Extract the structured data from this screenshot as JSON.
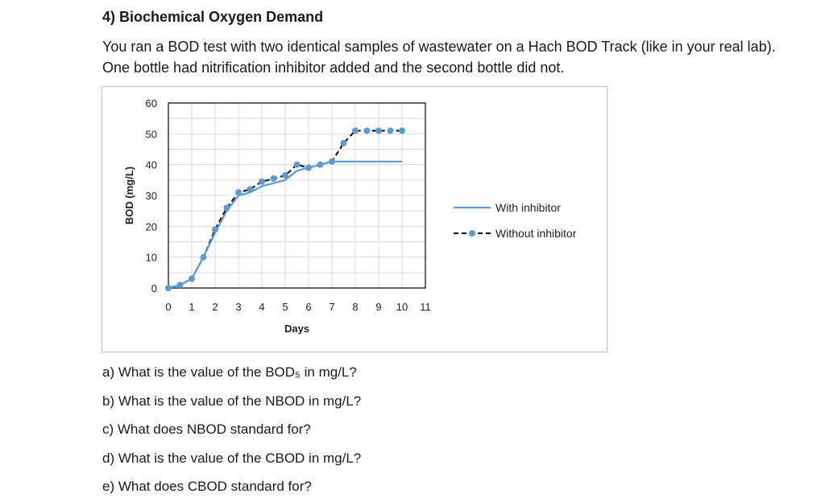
{
  "heading": "4) Biochemical Oxygen Demand",
  "intro": "You ran a BOD test with two identical samples of wastewater on a Hach BOD Track (like in your real lab). One bottle had nitrification inhibitor added and the second bottle did not.",
  "chart_data": {
    "type": "line",
    "xlabel": "Days",
    "ylabel": "BOD (mg/L)",
    "xlim": [
      0,
      11
    ],
    "ylim": [
      0,
      60
    ],
    "xticks": [
      0,
      1,
      2,
      3,
      4,
      5,
      6,
      7,
      8,
      9,
      10,
      11
    ],
    "yticks": [
      0,
      10,
      20,
      30,
      40,
      50,
      60
    ],
    "grid": true,
    "legend_position": "right",
    "series": [
      {
        "name": "With inhibitor",
        "style": "solid",
        "color": "#5b9bd5",
        "x": [
          0,
          0.5,
          1,
          1.5,
          2,
          2.5,
          3,
          3.5,
          4,
          4.5,
          5,
          5.5,
          6,
          6.5,
          7,
          7.5,
          8,
          9,
          10
        ],
        "y": [
          0,
          1,
          3,
          10,
          18,
          25,
          30,
          31,
          33,
          34,
          35,
          38,
          39,
          40,
          41,
          41,
          41,
          41,
          41
        ]
      },
      {
        "name": "Without inhibitor",
        "style": "dashed-markers",
        "color": "#5b9bd5",
        "line_color": "#000000",
        "x": [
          0,
          0.5,
          1,
          1.5,
          2,
          2.5,
          3,
          3.5,
          4,
          4.5,
          5,
          5.5,
          6,
          6.5,
          7,
          7.5,
          8,
          8.5,
          9,
          9.5,
          10
        ],
        "y": [
          0,
          1,
          3,
          10,
          19,
          26,
          31,
          32,
          34.5,
          35.5,
          36.5,
          40,
          39,
          40,
          41,
          47,
          51,
          51,
          51,
          51,
          51
        ]
      }
    ]
  },
  "questions": [
    "a) What is the value of the BOD₅ in mg/L?",
    "b) What is the value of the NBOD in mg/L?",
    "c) What does NBOD standard for?",
    "d) What is the value of the CBOD in mg/L?",
    "e) What does CBOD standard for?"
  ]
}
